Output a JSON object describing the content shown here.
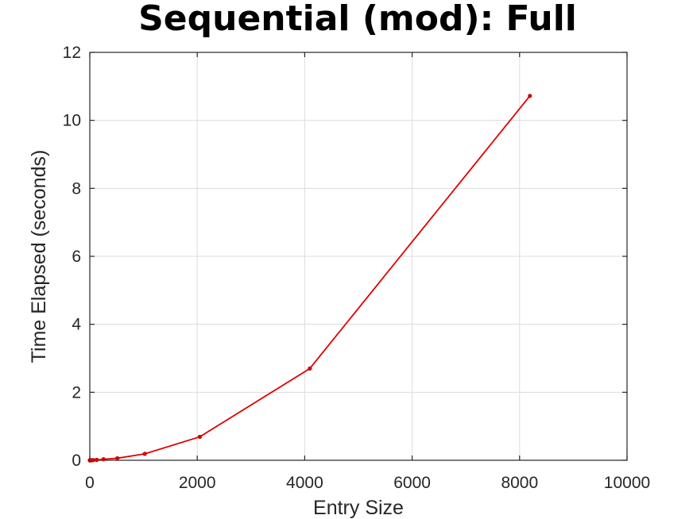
{
  "chart_data": {
    "type": "line",
    "title": "Sequential (mod): Full",
    "xlabel": "Entry Size",
    "ylabel": "Time Elapsed (seconds)",
    "xlim": [
      0,
      10000
    ],
    "ylim": [
      0,
      12
    ],
    "xticks": [
      0,
      2000,
      4000,
      6000,
      8000,
      10000
    ],
    "yticks": [
      0,
      2,
      4,
      6,
      8,
      10,
      12
    ],
    "grid": true,
    "series": [
      {
        "color": "#e00000",
        "marker": "dot",
        "x": [
          1,
          2,
          4,
          8,
          16,
          32,
          64,
          128,
          256,
          512,
          1024,
          2048,
          4096,
          8192
        ],
        "y": [
          0.0,
          0.0,
          0.0,
          0.0,
          0.0,
          0.0,
          0.005,
          0.012,
          0.03,
          0.06,
          0.19,
          0.69,
          2.7,
          10.72
        ]
      }
    ]
  }
}
